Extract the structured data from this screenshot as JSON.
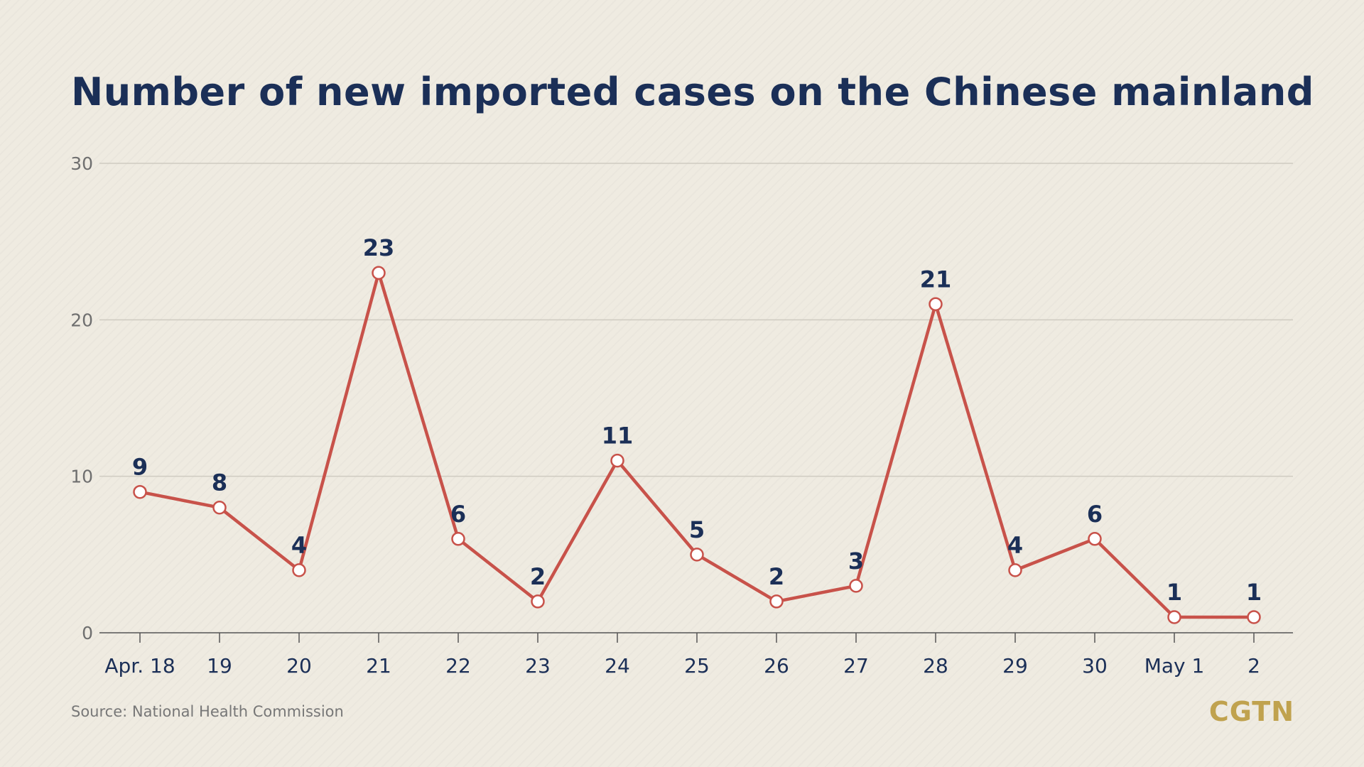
{
  "title": "Number of new imported cases on the Chinese mainland",
  "source": "Source: National Health Commission",
  "brand": "CGTN",
  "colors": {
    "line": "#c8524a",
    "marker_fill": "#ffffff",
    "text_dark": "#1b2f57",
    "grid": "#cfcbc1",
    "axis": "#555555",
    "brand": "#c0a24e"
  },
  "chart_data": {
    "type": "line",
    "categories": [
      "Apr. 18",
      "19",
      "20",
      "21",
      "22",
      "23",
      "24",
      "25",
      "26",
      "27",
      "28",
      "29",
      "30",
      "May 1",
      "2"
    ],
    "series": [
      {
        "values": [
          9,
          8,
          4,
          23,
          6,
          2,
          11,
          5,
          2,
          3,
          21,
          4,
          6,
          1,
          1
        ]
      }
    ],
    "data_labels": [
      "9",
      "8",
      "4",
      "23",
      "6",
      "2",
      "11",
      "5",
      "2",
      "3",
      "21",
      "4",
      "6",
      "1",
      "1"
    ],
    "yticks": [
      0,
      10,
      20,
      30
    ],
    "ylim": [
      0,
      30
    ],
    "grid": true,
    "legend": "none"
  }
}
